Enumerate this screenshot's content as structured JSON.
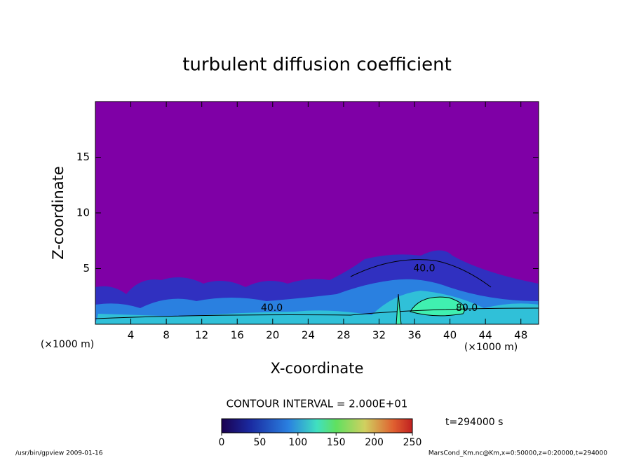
{
  "chart_data": {
    "type": "contour",
    "title": "turbulent diffusion coefficient",
    "xlabel": "X-coordinate",
    "ylabel": "Z-coordinate",
    "xunit": "(×1000 m)",
    "yunit": "(×1000 m)",
    "xlim": [
      0,
      50
    ],
    "xticks": [
      4,
      8,
      12,
      16,
      20,
      24,
      28,
      32,
      36,
      40,
      44,
      48
    ],
    "ylim": [
      0,
      20
    ],
    "yticks": [
      5,
      10,
      15
    ],
    "contour_labels": [
      {
        "value": 40,
        "label": "40.0",
        "x": 19.9,
        "y": 1.45
      },
      {
        "value": 40,
        "label": "40.0",
        "x": 37.1,
        "y": 5.0
      },
      {
        "value": 80,
        "label": "80.0",
        "x": 41.9,
        "y": 1.45
      }
    ],
    "contour_interval": "CONTOUR INTERVAL = 2.000E+01",
    "colorbar": {
      "lim": [
        0,
        250
      ],
      "ticks": [
        0,
        50,
        100,
        150,
        200,
        250
      ]
    },
    "time_label": "t=294000 s",
    "footer_left": "/usr/bin/gpview   2009-01-16",
    "footer_right": "MarsCond_Km.nc@Km,x=0:50000,z=0:20000,t=294000"
  }
}
